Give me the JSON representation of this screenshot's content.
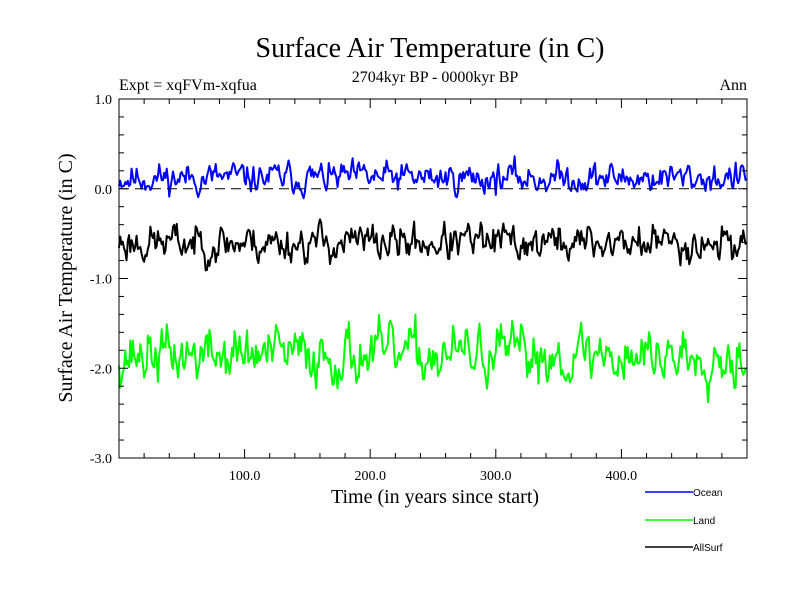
{
  "chart_data": {
    "type": "line",
    "title": "Surface Air Temperature (in C)",
    "subtitle": "2704kyr BP - 0000kyr BP",
    "experiment_label": "Expt = xqFVm-xqfua",
    "season_label": "Ann",
    "xlabel": "Time (in years since start)",
    "ylabel": "Surface Air Temperature (in C)",
    "xlim": [
      0,
      500
    ],
    "ylim": [
      -3.0,
      1.0
    ],
    "x_ticks": [
      100,
      200,
      300,
      400
    ],
    "x_tick_labels": [
      "100.0",
      "200.0",
      "300.0",
      "400.0"
    ],
    "y_ticks": [
      1.0,
      0.0,
      -1.0,
      -2.0,
      -3.0
    ],
    "y_tick_labels": [
      "1.0",
      "0.0",
      "-1.0",
      "-2.0",
      "-3.0"
    ],
    "reference_line": 0.0,
    "legend_placement": "bottom-right, below plot",
    "series": [
      {
        "name": "Ocean",
        "color": "#0000ff",
        "mean": 0.12,
        "amplitude": 0.12,
        "seed": 11
      },
      {
        "name": "AllSurf",
        "color": "#000000",
        "mean": -0.6,
        "amplitude": 0.15,
        "seed": 23
      },
      {
        "name": "Land",
        "color": "#00ff00",
        "mean": -1.85,
        "amplitude": 0.22,
        "seed": 37
      }
    ],
    "legend": [
      {
        "label": "Ocean",
        "color": "#0000ff"
      },
      {
        "label": "Land",
        "color": "#00ff00"
      },
      {
        "label": "AllSurf",
        "color": "#000000"
      }
    ],
    "n_points": 500
  }
}
